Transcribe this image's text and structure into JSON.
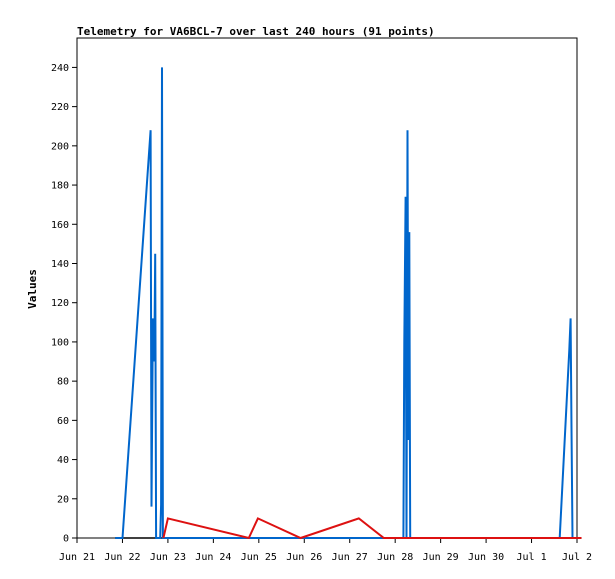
{
  "chart_data": {
    "type": "line",
    "title": "Telemetry for VA6BCL-7 over last 240 hours (91 points)",
    "xlabel": "",
    "ylabel": "Values",
    "x_ticks": [
      "Jun 21",
      "Jun 22",
      "Jun 23",
      "Jun 24",
      "Jun 25",
      "Jun 26",
      "Jun 27",
      "Jun 28",
      "Jun 29",
      "Jun 30",
      "Jul 1",
      "Jul 2"
    ],
    "xlim": [
      0,
      11
    ],
    "y_ticks": [
      0,
      20,
      40,
      60,
      80,
      100,
      120,
      140,
      160,
      180,
      200,
      220,
      240
    ],
    "ylim": [
      0,
      255
    ],
    "grid": false,
    "legend": "none",
    "series": [
      {
        "color": "#0066cc",
        "points": [
          [
            0.84,
            0
          ],
          [
            1.0,
            0
          ],
          [
            1.62,
            208
          ],
          [
            1.64,
            16
          ],
          [
            1.67,
            112
          ],
          [
            1.7,
            90
          ],
          [
            1.72,
            145
          ],
          [
            1.74,
            0
          ],
          [
            1.83,
            0
          ],
          [
            1.85,
            17
          ],
          [
            1.87,
            240
          ],
          [
            1.89,
            0
          ],
          [
            7.18,
            0
          ],
          [
            7.2,
            100
          ],
          [
            7.23,
            174
          ],
          [
            7.25,
            0
          ],
          [
            7.27,
            208
          ],
          [
            7.29,
            50
          ],
          [
            7.31,
            156
          ],
          [
            7.33,
            0
          ],
          [
            7.4,
            0
          ],
          [
            10.62,
            0
          ],
          [
            10.83,
            96
          ],
          [
            10.86,
            112
          ],
          [
            10.88,
            56
          ],
          [
            10.9,
            0
          ],
          [
            11.1,
            0
          ]
        ]
      },
      {
        "color": "#dd1111",
        "points": [
          [
            1.9,
            0
          ],
          [
            2.0,
            10
          ],
          [
            3.78,
            0
          ],
          [
            3.98,
            10
          ],
          [
            4.92,
            0
          ],
          [
            6.2,
            10
          ],
          [
            6.75,
            0
          ],
          [
            7.4,
            0
          ],
          [
            11.1,
            0
          ]
        ]
      }
    ]
  }
}
